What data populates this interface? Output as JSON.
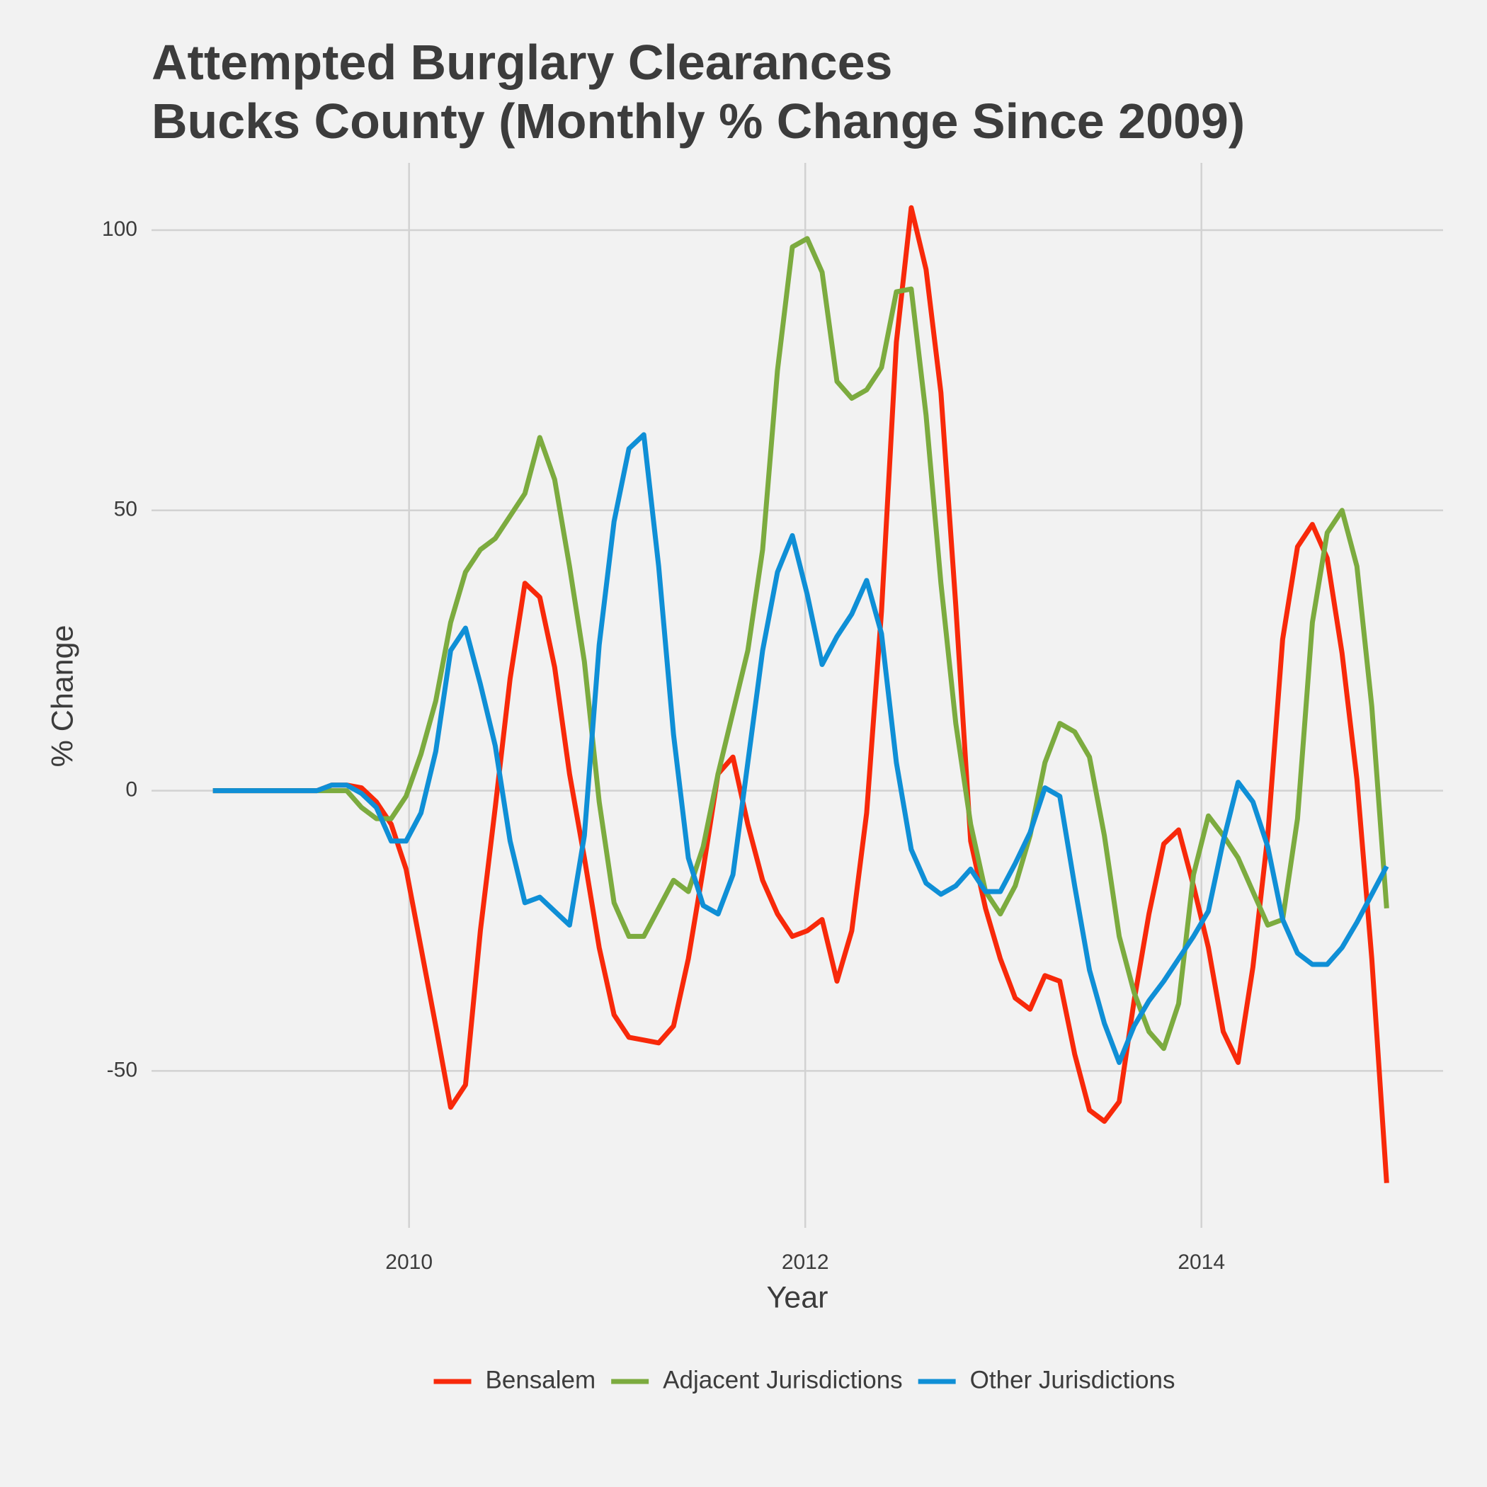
{
  "chart_data": {
    "type": "line",
    "title": "Attempted Burglary Clearances",
    "subtitle": "Bucks County (Monthly % Change Since 2009)",
    "x_label": "Year",
    "y_label": "% Change",
    "x": [
      2009.01,
      2009.085,
      2009.16,
      2009.235,
      2009.31,
      2009.385,
      2009.46,
      2009.535,
      2009.61,
      2009.685,
      2009.76,
      2009.835,
      2009.91,
      2009.985,
      2010.06,
      2010.135,
      2010.21,
      2010.285,
      2010.36,
      2010.435,
      2010.51,
      2010.585,
      2010.66,
      2010.735,
      2010.81,
      2010.885,
      2010.96,
      2011.035,
      2011.11,
      2011.185,
      2011.26,
      2011.335,
      2011.41,
      2011.485,
      2011.56,
      2011.635,
      2011.71,
      2011.785,
      2011.86,
      2011.935,
      2012.01,
      2012.085,
      2012.16,
      2012.235,
      2012.31,
      2012.385,
      2012.46,
      2012.535,
      2012.61,
      2012.685,
      2012.76,
      2012.835,
      2012.91,
      2012.985,
      2013.06,
      2013.135,
      2013.21,
      2013.285,
      2013.36,
      2013.435,
      2013.51,
      2013.585,
      2013.66,
      2013.735,
      2013.81,
      2013.885,
      2013.96,
      2014.035,
      2014.11,
      2014.185,
      2014.26,
      2014.335,
      2014.41,
      2014.485,
      2014.56,
      2014.635,
      2014.71,
      2014.785,
      2014.86,
      2014.935
    ],
    "series": [
      {
        "name": "Bensalem",
        "color": "#f8290a",
        "values": [
          0,
          0,
          0,
          0,
          0,
          0,
          0,
          0,
          1,
          1,
          0.5,
          -2,
          -6,
          -14,
          -28,
          -42,
          -56.5,
          -52.5,
          -25,
          -3,
          20,
          37,
          34.5,
          22,
          3,
          -12,
          -28,
          -40,
          -44,
          -44.5,
          -45,
          -42,
          -30,
          -14,
          3,
          6,
          -6,
          -16,
          -22,
          -26,
          -25,
          -23,
          -34,
          -25,
          -4,
          32,
          80,
          104,
          93,
          71,
          33,
          -9,
          -21,
          -30,
          -37,
          -39,
          -33,
          -34,
          -47,
          -57,
          -59,
          -55.5,
          -37.5,
          -22,
          -9.5,
          -7,
          -17,
          -28,
          -43,
          -48.5,
          -31.5,
          -8,
          27,
          43.5,
          47.5,
          41.5,
          24.5,
          2,
          -30,
          -70
        ]
      },
      {
        "name": "Adjacent Jurisdictions",
        "color": "#7cab3f",
        "values": [
          0,
          0,
          0,
          0,
          0,
          0,
          0,
          0,
          0,
          0,
          -3,
          -5,
          -5,
          -1,
          6.5,
          16,
          30,
          39,
          43,
          45,
          49,
          53,
          63,
          55.5,
          40,
          23,
          -2,
          -20,
          -26,
          -26,
          -21,
          -16,
          -18,
          -10,
          3,
          14,
          25,
          43,
          75,
          97,
          98.5,
          92.5,
          73,
          70,
          71.5,
          75.5,
          89,
          89.5,
          67,
          37,
          12,
          -6,
          -18,
          -22,
          -17,
          -8,
          5,
          12,
          10.5,
          6,
          -8,
          -26,
          -36,
          -43,
          -46,
          -38,
          -15,
          -4.5,
          -8,
          -12,
          -18,
          -24,
          -23,
          -5,
          30,
          46,
          50,
          40,
          15,
          -21
        ]
      },
      {
        "name": "Other Jurisdictions",
        "color": "#0f8fd6",
        "values": [
          0,
          0,
          0,
          0,
          0,
          0,
          0,
          0,
          1,
          1,
          -0.5,
          -3,
          -9,
          -9,
          -4,
          7,
          25,
          29,
          19,
          8,
          -9,
          -20,
          -19,
          -21.5,
          -24,
          -8,
          26,
          48,
          61,
          63.5,
          40,
          10,
          -12,
          -20.5,
          -22,
          -15,
          5,
          25,
          39,
          45.5,
          35,
          22.5,
          27.5,
          31.5,
          37.5,
          28,
          5,
          -10.5,
          -16.5,
          -18.5,
          -17,
          -14,
          -18,
          -18,
          -13,
          -7.5,
          0.5,
          -1,
          -17,
          -32,
          -41.5,
          -48.5,
          -42,
          -37.5,
          -34,
          -30,
          -26,
          -21.5,
          -9,
          1.5,
          -2,
          -10,
          -23,
          -29,
          -31,
          -31,
          -28,
          -23.5,
          -18.5,
          -13.5
        ]
      }
    ],
    "xlim": [
      2008.7,
      2015.22
    ],
    "xticks": [
      2010,
      2012,
      2014
    ],
    "ylim": [
      -78,
      112
    ],
    "yticks": [
      -50,
      0,
      50,
      100
    ],
    "grid": true,
    "legend": "bottom"
  }
}
